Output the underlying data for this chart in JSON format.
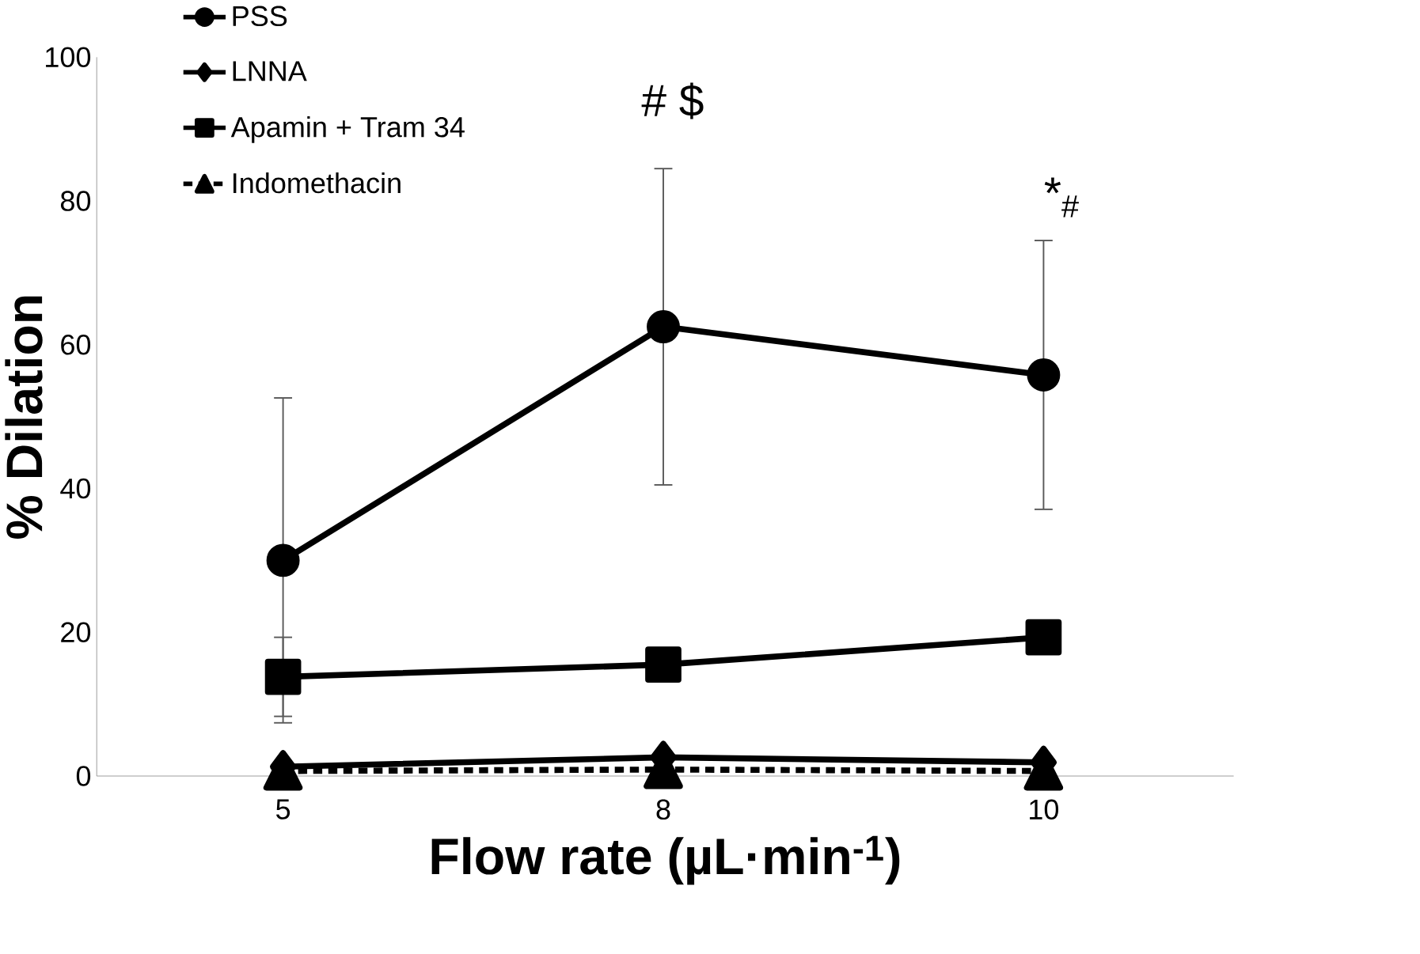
{
  "chart_data": {
    "type": "line",
    "xlabel": "Flow rate (µL·min$^{-1}$)",
    "ylabel": "% Dilation",
    "categories": [
      "5",
      "8",
      "10"
    ],
    "series": [
      {
        "name": "PSS",
        "color": "#000000",
        "marker": "circle",
        "line_style": "solid",
        "values": [
          30.0,
          62.5,
          55.8
        ],
        "errors": [
          22.6,
          22.0,
          18.7
        ]
      },
      {
        "name": "LNNA",
        "color": "#000000",
        "marker": "diamond",
        "line_style": "solid",
        "values": [
          1.3,
          2.6,
          1.9
        ]
      },
      {
        "name": "Apamin + Tram 34",
        "color": "#000000",
        "marker": "square",
        "line_style": "solid",
        "values": [
          13.8,
          15.5,
          19.3
        ],
        "errors": [
          5.5,
          null,
          null
        ]
      },
      {
        "name": "Indomethacin",
        "color": "#000000",
        "marker": "triangle",
        "line_style": "dashed",
        "values": [
          0.7,
          0.9,
          0.7
        ]
      }
    ],
    "ylim": [
      0,
      100
    ],
    "yticks": [
      0,
      20,
      40,
      60,
      80,
      100
    ],
    "grid": false,
    "legend": "top left",
    "annotations": [
      "# $",
      "*$_{#}$"
    ]
  }
}
